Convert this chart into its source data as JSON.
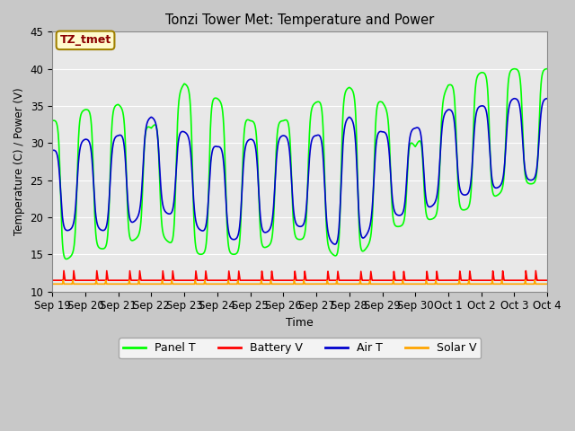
{
  "title": "Tonzi Tower Met: Temperature and Power",
  "xlabel": "Time",
  "ylabel": "Temperature (C) / Power (V)",
  "ylim": [
    10,
    45
  ],
  "annotation_text": "TZ_tmet",
  "annotation_color": "#8B0000",
  "annotation_bg": "#FFFACD",
  "fig_bg": "#C8C8C8",
  "plot_bg": "#E8E8E8",
  "grid_color": "#FFFFFF",
  "x_tick_labels": [
    "Sep 19",
    "Sep 20",
    "Sep 21",
    "Sep 22",
    "Sep 23",
    "Sep 24",
    "Sep 25",
    "Sep 26",
    "Sep 27",
    "Sep 28",
    "Sep 29",
    "Sep 30",
    "Oct 1",
    "Oct 2",
    "Oct 3",
    "Oct 4"
  ],
  "series": {
    "panel_t": {
      "color": "#00FF00",
      "label": "Panel T",
      "linewidth": 1.2
    },
    "battery_v": {
      "color": "#FF0000",
      "label": "Battery V",
      "linewidth": 1.2
    },
    "air_t": {
      "color": "#0000CD",
      "label": "Air T",
      "linewidth": 1.2
    },
    "solar_v": {
      "color": "#FFA500",
      "label": "Solar V",
      "linewidth": 1.2
    }
  },
  "num_days": 15,
  "panel_peaks": [
    33.0,
    34.5,
    35.2,
    32.0,
    38.0,
    36.0,
    33.0,
    33.0,
    35.5,
    37.5,
    35.5,
    29.5,
    37.8,
    39.5,
    40.0
  ],
  "panel_troughs": [
    13.0,
    16.0,
    15.5,
    18.5,
    15.0,
    15.0,
    15.0,
    17.0,
    17.0,
    13.0,
    18.5,
    19.0,
    20.5,
    21.5,
    24.5
  ],
  "air_peaks": [
    29.0,
    30.5,
    31.0,
    33.5,
    31.5,
    29.5,
    30.5,
    31.0,
    31.0,
    33.5,
    31.5,
    32.0,
    34.5,
    35.0,
    36.0
  ],
  "air_troughs": [
    17.5,
    19.0,
    17.5,
    21.5,
    19.5,
    17.0,
    17.0,
    19.0,
    18.5,
    14.5,
    20.5,
    20.0,
    23.0,
    23.0,
    25.0
  ],
  "battery_base": 11.5,
  "battery_spike": 12.8,
  "solar_base": 11.0,
  "solar_mid": 11.5,
  "points_per_day": 200
}
